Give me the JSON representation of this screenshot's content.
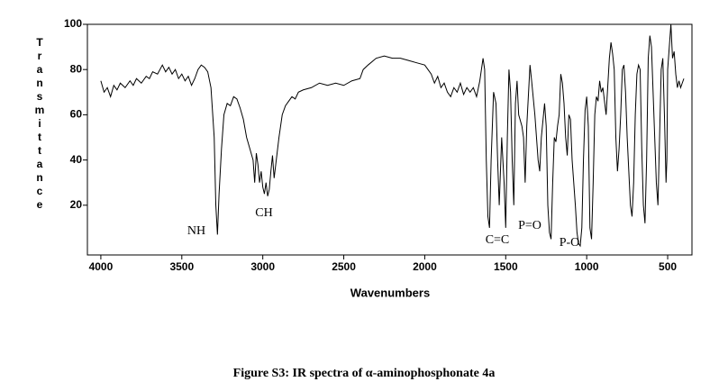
{
  "chart_data": {
    "type": "line",
    "title": "Figure S3: IR spectra of α-aminophosphonate 4a",
    "x_label": "Wavenumbers",
    "y_label": "Transmittance",
    "xlim": [
      4083,
      350
    ],
    "ylim": [
      -2,
      100
    ],
    "xticks": [
      4000,
      3500,
      3000,
      2500,
      2000,
      1500,
      1000,
      500
    ],
    "yticks": [
      20,
      40,
      60,
      80,
      100
    ],
    "annotations": [
      "NH",
      "CH",
      "C=C",
      "P=O",
      "P-O"
    ],
    "series": [
      {
        "name": "4a",
        "color": "#000000",
        "x": [
          4000,
          3980,
          3960,
          3940,
          3920,
          3900,
          3880,
          3850,
          3820,
          3800,
          3780,
          3750,
          3720,
          3700,
          3680,
          3650,
          3620,
          3600,
          3580,
          3560,
          3540,
          3520,
          3500,
          3480,
          3460,
          3440,
          3420,
          3400,
          3380,
          3360,
          3340,
          3320,
          3300,
          3290,
          3280,
          3270,
          3255,
          3240,
          3220,
          3200,
          3180,
          3160,
          3140,
          3120,
          3100,
          3080,
          3060,
          3050,
          3040,
          3030,
          3020,
          3010,
          3000,
          2990,
          2980,
          2970,
          2960,
          2950,
          2940,
          2930,
          2920,
          2900,
          2880,
          2860,
          2840,
          2820,
          2800,
          2780,
          2750,
          2700,
          2650,
          2600,
          2550,
          2500,
          2450,
          2400,
          2380,
          2350,
          2300,
          2250,
          2200,
          2150,
          2100,
          2050,
          2000,
          1980,
          1960,
          1940,
          1920,
          1900,
          1880,
          1860,
          1840,
          1820,
          1800,
          1780,
          1760,
          1740,
          1720,
          1700,
          1680,
          1660,
          1640,
          1630,
          1620,
          1610,
          1600,
          1590,
          1575,
          1560,
          1550,
          1540,
          1525,
          1510,
          1500,
          1490,
          1480,
          1470,
          1460,
          1450,
          1440,
          1430,
          1420,
          1400,
          1390,
          1380,
          1370,
          1350,
          1340,
          1320,
          1300,
          1290,
          1280,
          1260,
          1250,
          1240,
          1230,
          1220,
          1210,
          1200,
          1190,
          1180,
          1170,
          1160,
          1150,
          1140,
          1130,
          1120,
          1110,
          1100,
          1090,
          1080,
          1070,
          1060,
          1050,
          1040,
          1030,
          1020,
          1010,
          1000,
          990,
          980,
          970,
          960,
          950,
          940,
          930,
          920,
          910,
          900,
          880,
          860,
          850,
          840,
          830,
          820,
          810,
          800,
          790,
          780,
          770,
          760,
          750,
          740,
          730,
          720,
          710,
          700,
          690,
          680,
          670,
          660,
          650,
          640,
          630,
          620,
          610,
          600,
          590,
          580,
          570,
          560,
          550,
          540,
          530,
          520,
          510,
          505,
          500,
          490,
          480,
          470,
          460,
          450,
          440,
          430,
          420,
          410,
          400
        ],
        "values": [
          75,
          70,
          72,
          68,
          73,
          71,
          74,
          72,
          75,
          73,
          76,
          74,
          77,
          76,
          79,
          78,
          82,
          79,
          81,
          78,
          80,
          76,
          78,
          75,
          77,
          73,
          76,
          80,
          82,
          81,
          79,
          72,
          50,
          20,
          7,
          25,
          45,
          60,
          65,
          64,
          68,
          67,
          63,
          58,
          50,
          45,
          40,
          30,
          43,
          38,
          30,
          35,
          28,
          25,
          30,
          24,
          27,
          35,
          42,
          32,
          38,
          50,
          60,
          64,
          66,
          68,
          67,
          70,
          71,
          72,
          74,
          73,
          74,
          73,
          75,
          76,
          80,
          82,
          85,
          86,
          85,
          85,
          84,
          83,
          82,
          80,
          78,
          74,
          77,
          72,
          74,
          70,
          68,
          72,
          70,
          74,
          69,
          72,
          70,
          72,
          68,
          75,
          85,
          80,
          40,
          15,
          10,
          40,
          70,
          65,
          40,
          20,
          50,
          30,
          10,
          50,
          80,
          70,
          40,
          20,
          65,
          75,
          60,
          55,
          50,
          30,
          55,
          82,
          75,
          60,
          40,
          35,
          50,
          65,
          55,
          20,
          8,
          5,
          30,
          50,
          48,
          55,
          60,
          78,
          74,
          65,
          50,
          42,
          60,
          58,
          40,
          30,
          20,
          8,
          3,
          2,
          10,
          40,
          62,
          68,
          55,
          10,
          5,
          30,
          60,
          68,
          66,
          75,
          70,
          72,
          60,
          85,
          92,
          87,
          80,
          50,
          35,
          45,
          60,
          80,
          82,
          70,
          50,
          35,
          20,
          15,
          30,
          60,
          78,
          82,
          80,
          45,
          20,
          12,
          40,
          85,
          95,
          90,
          70,
          50,
          30,
          20,
          50,
          80,
          85,
          60,
          30,
          40,
          80,
          90,
          100,
          85,
          88,
          78,
          72,
          75,
          72,
          74,
          76
        ]
      }
    ]
  }
}
